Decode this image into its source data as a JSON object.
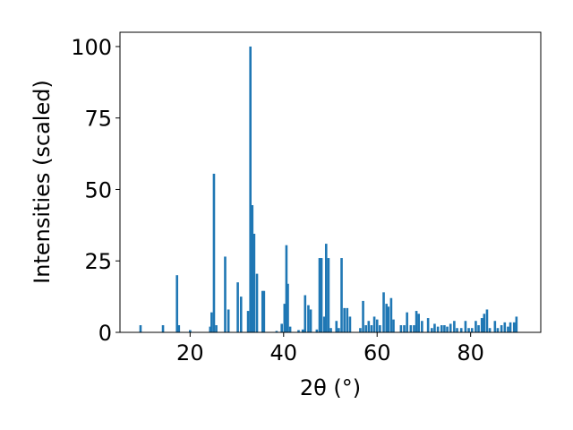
{
  "chart_data": {
    "type": "bar",
    "xlabel": "2θ (°)",
    "ylabel": "Intensities (scaled)",
    "xlim": [
      5,
      95
    ],
    "ylim": [
      0,
      105
    ],
    "xticks": [
      20,
      40,
      60,
      80
    ],
    "yticks": [
      0,
      25,
      50,
      75,
      100
    ],
    "bar_color": "#1f77b4",
    "bar_width": 0.5,
    "grid": false,
    "x": [
      9.4,
      14.2,
      17.2,
      17.6,
      20.0,
      24.3,
      24.6,
      25.1,
      25.6,
      27.5,
      28.2,
      30.2,
      30.9,
      32.4,
      32.9,
      33.3,
      33.7,
      34.3,
      35.5,
      35.8,
      38.5,
      39.6,
      40.2,
      40.6,
      40.9,
      41.4,
      43.2,
      44.1,
      44.6,
      45.3,
      45.8,
      47.1,
      47.7,
      48.1,
      48.7,
      49.1,
      49.6,
      50.1,
      51.3,
      51.8,
      52.4,
      53.0,
      53.6,
      54.2,
      56.4,
      57.0,
      57.6,
      58.2,
      58.8,
      59.4,
      60.0,
      60.6,
      61.4,
      62.0,
      62.4,
      63.0,
      63.5,
      65.1,
      65.8,
      66.4,
      67.2,
      67.9,
      68.4,
      68.9,
      69.6,
      70.9,
      71.7,
      72.3,
      73.0,
      73.8,
      74.4,
      75.0,
      75.7,
      76.5,
      77.1,
      78.0,
      78.9,
      79.6,
      80.3,
      81.1,
      81.7,
      82.4,
      82.9,
      83.5,
      84.1,
      85.2,
      85.8,
      86.6,
      87.3,
      88.0,
      88.5,
      89.3,
      89.8
    ],
    "values": [
      2.5,
      2.5,
      20,
      2.5,
      0.8,
      2,
      7,
      55.5,
      2.5,
      26.5,
      8,
      17.5,
      12.5,
      7.5,
      100,
      44.5,
      34.5,
      20.5,
      14.5,
      14.5,
      0.5,
      3,
      10,
      30.5,
      17,
      2,
      0.8,
      1,
      13,
      9.5,
      8,
      1,
      26,
      26,
      5.5,
      31,
      26,
      1.5,
      4,
      1.5,
      26,
      8.5,
      8.5,
      5.5,
      1.5,
      11,
      2.5,
      4,
      2.5,
      5.5,
      4.5,
      2.5,
      14,
      10,
      9,
      12,
      4.5,
      2.5,
      2.5,
      7,
      2.5,
      2.5,
      7.5,
      6.5,
      4,
      5,
      1.5,
      3,
      2,
      2.5,
      2.5,
      2,
      3,
      4,
      1.5,
      1.5,
      4,
      1.5,
      1.5,
      4,
      2.5,
      5,
      6.5,
      8,
      1.5,
      4,
      1.5,
      2.5,
      3.5,
      2,
      3.5,
      3.5,
      5.5
    ]
  }
}
